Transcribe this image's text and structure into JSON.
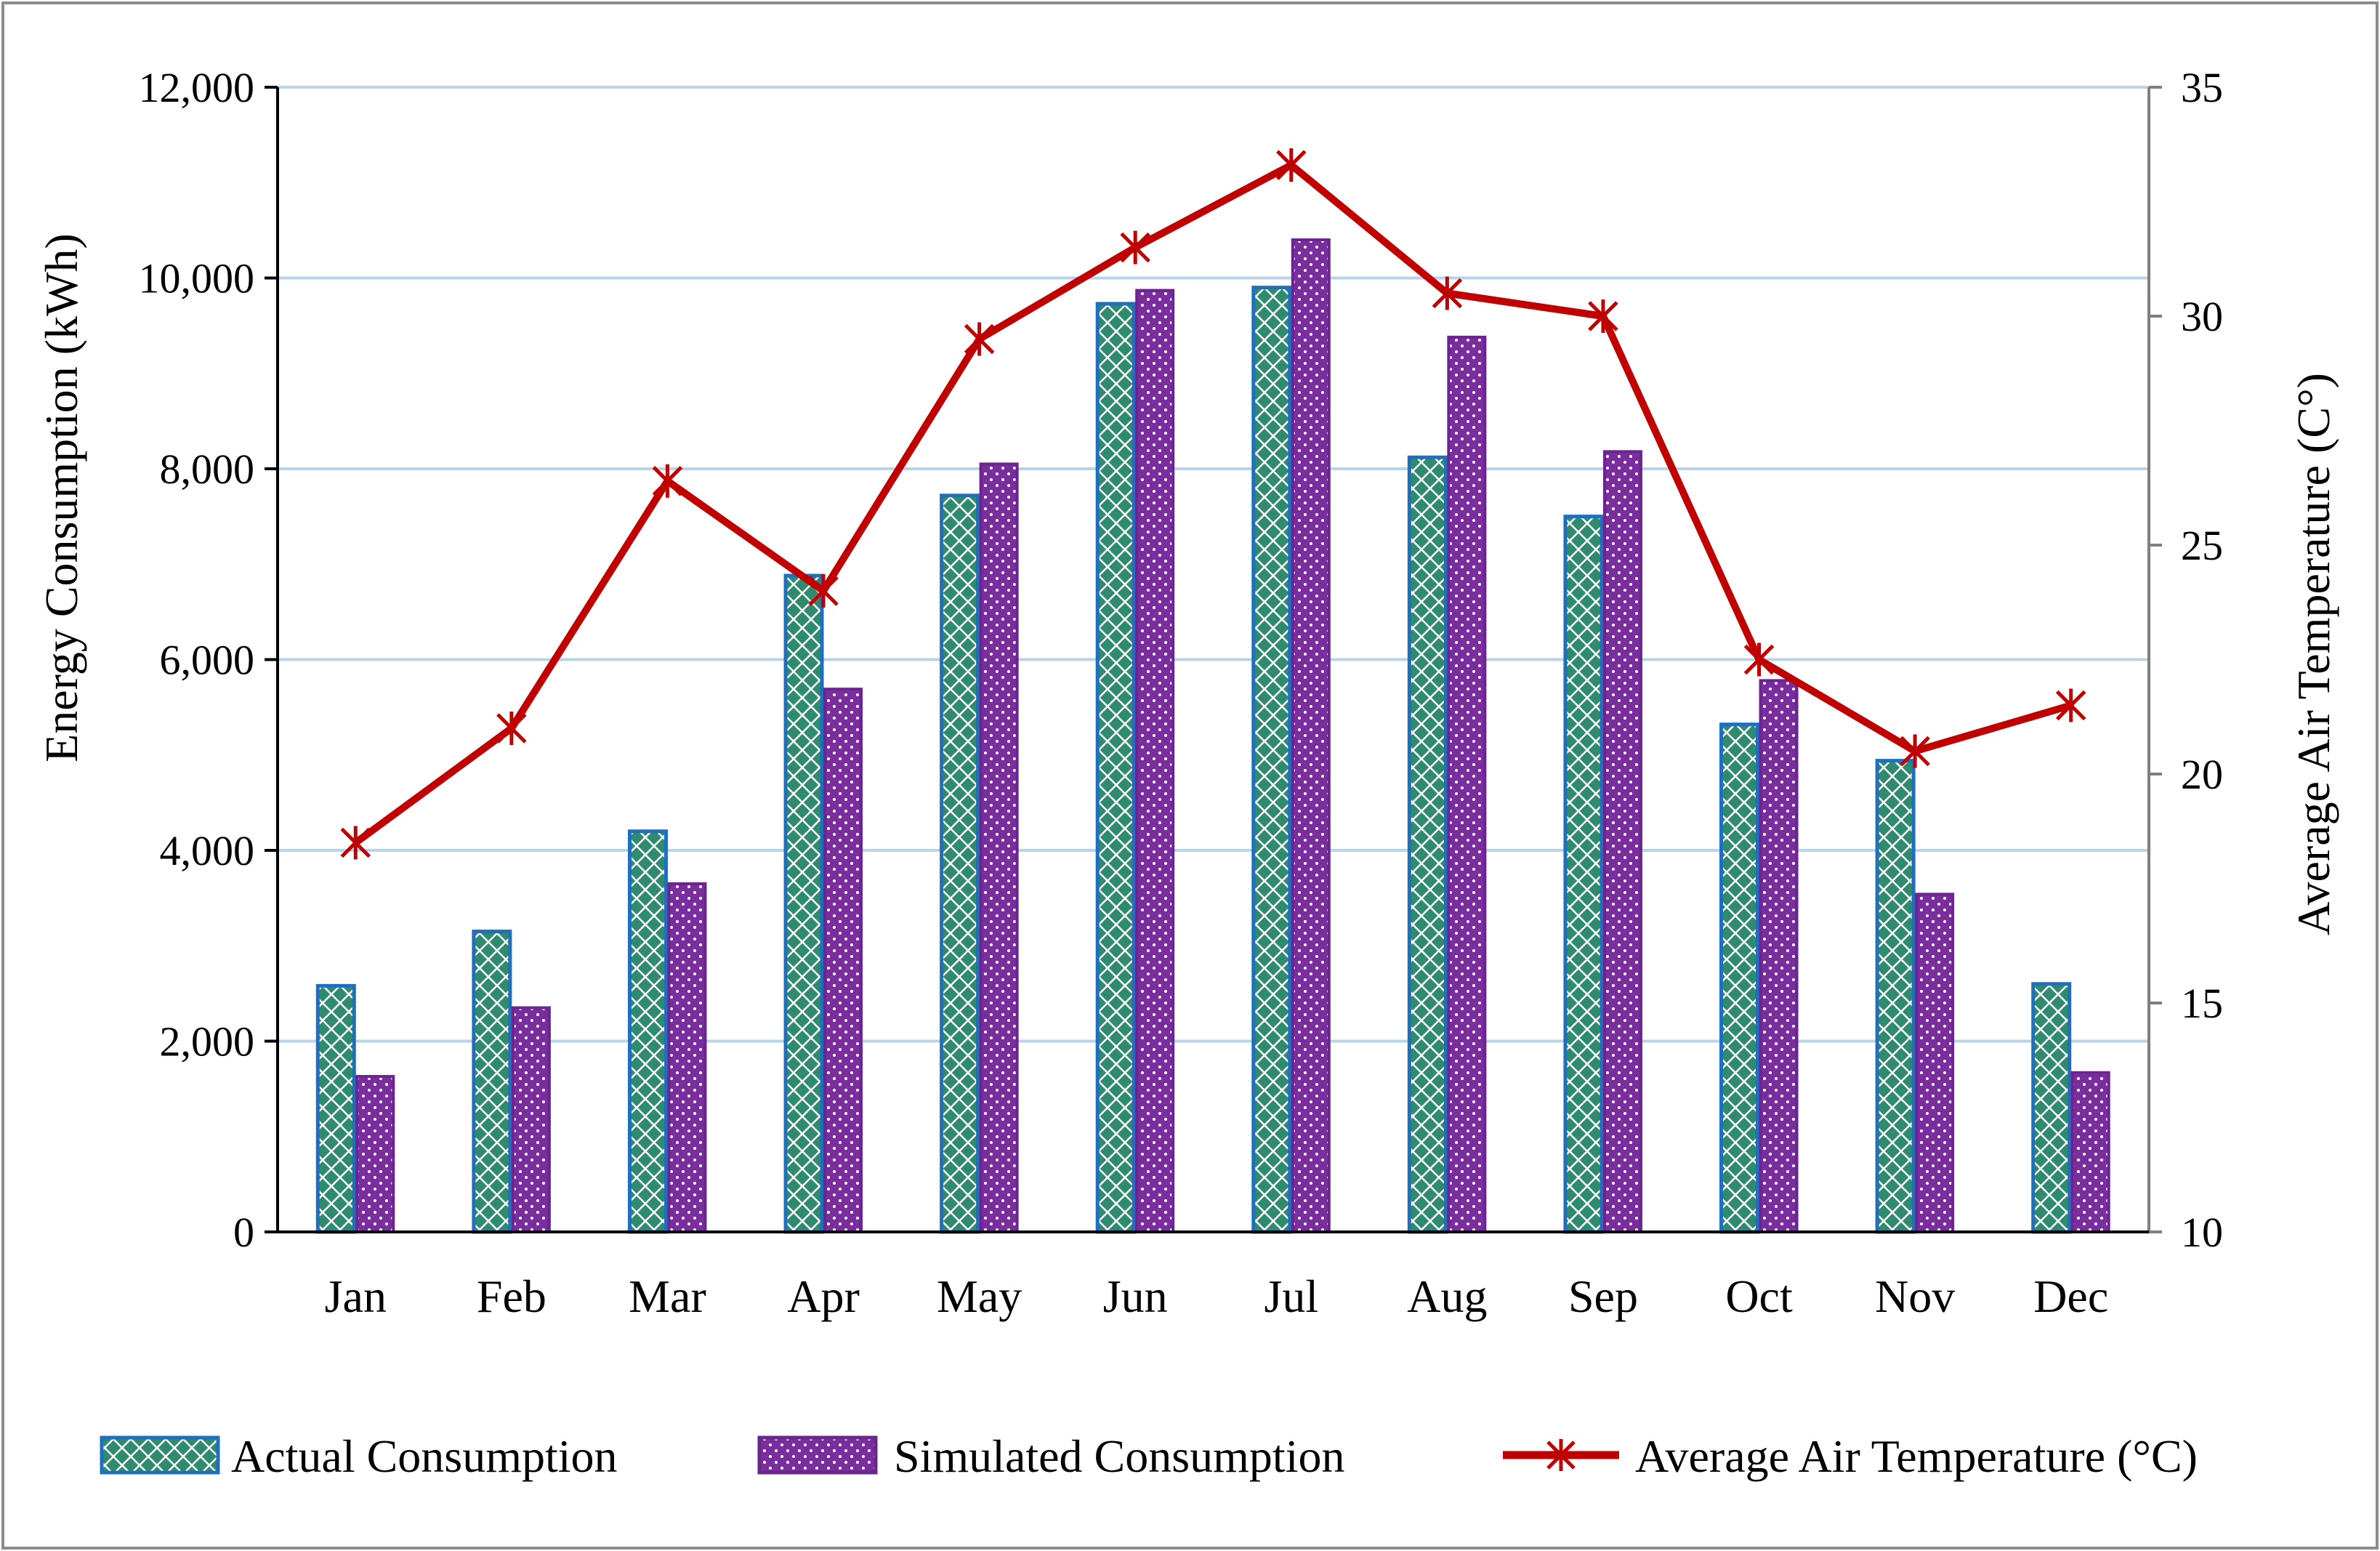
{
  "chart_data": {
    "type": "bar",
    "categories": [
      "Jan",
      "Feb",
      "Mar",
      "Apr",
      "May",
      "Jun",
      "Jul",
      "Aug",
      "Sep",
      "Oct",
      "Nov",
      "Dec"
    ],
    "series": [
      {
        "name": "Actual Consumption",
        "kind": "bar",
        "axis": "left",
        "color": "#2E8B6E",
        "border": "#1F6FBF",
        "values": [
          2580,
          3150,
          4200,
          6880,
          7720,
          9730,
          9900,
          8120,
          7500,
          5320,
          4940,
          2600
        ]
      },
      {
        "name": "Simulated Consumption",
        "kind": "bar",
        "axis": "left",
        "color": "#7A2E9E",
        "border": "#6A2590",
        "values": [
          1630,
          2350,
          3650,
          5690,
          8050,
          9870,
          10400,
          9380,
          8180,
          5780,
          3540,
          1670
        ]
      },
      {
        "name": "Average Air Temperature (°C)",
        "kind": "line",
        "axis": "right",
        "color": "#C00000",
        "values": [
          18.5,
          21.0,
          26.4,
          24.0,
          29.5,
          31.5,
          33.3,
          30.5,
          30.0,
          22.5,
          20.5,
          21.5
        ]
      }
    ],
    "ylabel": "Energy Consumption (kWh)",
    "y2label": "Average Air Temperature (C°)",
    "ylim": [
      0,
      12000
    ],
    "yticks": [
      0,
      2000,
      4000,
      6000,
      8000,
      10000,
      12000
    ],
    "ytick_labels": [
      "0",
      "2,000",
      "4,000",
      "6,000",
      "8,000",
      "10,000",
      "12,000"
    ],
    "y2lim": [
      10,
      35
    ],
    "y2ticks": [
      10,
      15,
      20,
      25,
      30,
      35
    ],
    "y2tick_labels": [
      "10",
      "15",
      "20",
      "25",
      "30",
      "35"
    ],
    "grid": true,
    "legend_position": "bottom"
  }
}
